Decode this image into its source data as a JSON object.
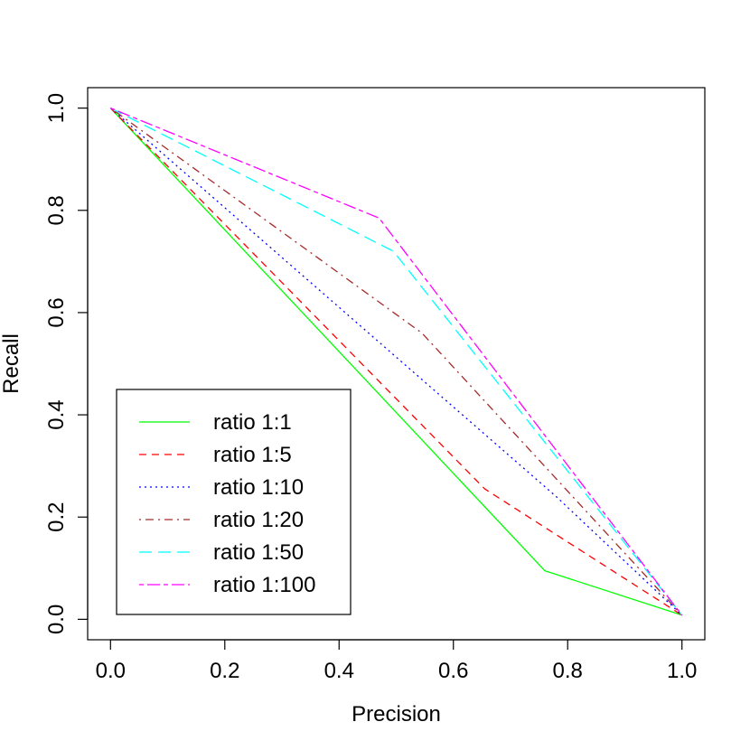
{
  "chart_data": {
    "type": "line",
    "xlabel": "Precision",
    "ylabel": "Recall",
    "xlim": [
      -0.04,
      1.04
    ],
    "ylim": [
      -0.04,
      1.04
    ],
    "x_ticks": [
      "0.0",
      "0.2",
      "0.4",
      "0.6",
      "0.8",
      "1.0"
    ],
    "y_ticks": [
      "0.0",
      "0.2",
      "0.4",
      "0.6",
      "0.8",
      "1.0"
    ],
    "grid": false,
    "legend_position": "bottom-left",
    "series": [
      {
        "name": "ratio 1:1",
        "color": "#00ff00",
        "dash": "solid",
        "x": [
          0.0,
          0.76,
          1.0
        ],
        "y": [
          1.0,
          0.095,
          0.008
        ]
      },
      {
        "name": "ratio 1:5",
        "color": "#ff0000",
        "dash": "dashed",
        "x": [
          0.0,
          0.655,
          1.0
        ],
        "y": [
          1.0,
          0.255,
          0.008
        ]
      },
      {
        "name": "ratio 1:10",
        "color": "#0000ff",
        "dash": "dotted",
        "x": [
          0.0,
          0.78,
          1.0
        ],
        "y": [
          1.0,
          0.24,
          0.008
        ]
      },
      {
        "name": "ratio 1:20",
        "color": "#a52a2a",
        "dash": "dotdash",
        "x": [
          0.0,
          0.545,
          1.0
        ],
        "y": [
          1.0,
          0.56,
          0.008
        ]
      },
      {
        "name": "ratio 1:50",
        "color": "#00ffff",
        "dash": "longdash",
        "x": [
          0.0,
          0.495,
          1.0
        ],
        "y": [
          1.0,
          0.72,
          0.008
        ]
      },
      {
        "name": "ratio 1:100",
        "color": "#ff00ff",
        "dash": "twodash",
        "x": [
          0.0,
          0.47,
          1.0
        ],
        "y": [
          1.0,
          0.785,
          0.008
        ]
      }
    ]
  }
}
